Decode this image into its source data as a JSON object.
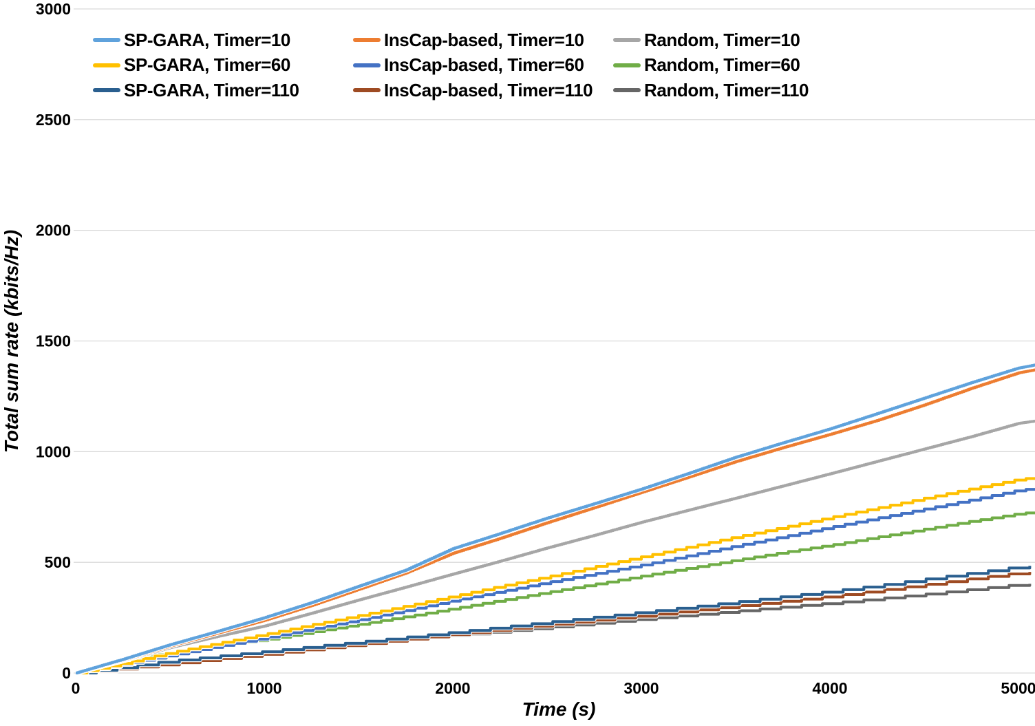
{
  "chart_data": {
    "type": "line",
    "title": "",
    "xlabel": "Time (s)",
    "ylabel": "Total sum rate (kbits/Hz)",
    "xlim": [
      0,
      5100
    ],
    "ylim": [
      0,
      3000
    ],
    "x_ticks": [
      0,
      1000,
      2000,
      3000,
      4000,
      5000
    ],
    "y_ticks": [
      0,
      500,
      1000,
      1500,
      2000,
      2500,
      3000
    ],
    "grid": "horizontal",
    "grid_color": "#d9d9d9",
    "legend_position": "top-left, 3 columns",
    "x": [
      0,
      250,
      500,
      750,
      1000,
      1250,
      1500,
      1750,
      2000,
      2250,
      2500,
      2750,
      3000,
      3250,
      3500,
      3750,
      4000,
      4250,
      4500,
      4750,
      5000,
      5100
    ],
    "series": [
      {
        "id": "sp-gara-timer-10",
        "name": "SP-GARA, Timer=10",
        "color": "#5FA2DC",
        "timer": 10,
        "values": [
          0,
          62,
          128,
          188,
          250,
          318,
          392,
          465,
          562,
          630,
          700,
          765,
          831,
          902,
          975,
          1040,
          1103,
          1172,
          1242,
          1312,
          1378,
          1394
        ]
      },
      {
        "id": "inscap-based-timer-10",
        "name": "InsCap-based, Timer=10",
        "color": "#ED7D31",
        "timer": 10,
        "values": [
          0,
          58,
          122,
          180,
          238,
          305,
          378,
          452,
          541,
          608,
          679,
          747,
          816,
          885,
          955,
          1018,
          1078,
          1141,
          1211,
          1286,
          1356,
          1372
        ]
      },
      {
        "id": "random-timer-10",
        "name": "Random, Timer=10",
        "color": "#A6A6A6",
        "timer": 10,
        "values": [
          0,
          55,
          115,
          165,
          212,
          270,
          330,
          388,
          447,
          505,
          565,
          622,
          681,
          736,
          790,
          845,
          900,
          956,
          1012,
          1068,
          1128,
          1140
        ]
      },
      {
        "id": "sp-gara-timer-60",
        "name": "SP-GARA, Timer=60",
        "color": "#FFC000",
        "timer": 60,
        "values": [
          0,
          45,
          92,
          134,
          175,
          218,
          260,
          303,
          347,
          392,
          435,
          480,
          525,
          570,
          615,
          658,
          703,
          746,
          790,
          833,
          875,
          884
        ]
      },
      {
        "id": "inscap-based-timer-60",
        "name": "InsCap-based, Timer=60",
        "color": "#4472C4",
        "timer": 60,
        "values": [
          0,
          40,
          80,
          120,
          159,
          200,
          241,
          284,
          328,
          369,
          410,
          449,
          488,
          531,
          575,
          616,
          659,
          700,
          741,
          783,
          826,
          835
        ]
      },
      {
        "id": "random-timer-60",
        "name": "Random, Timer=60",
        "color": "#70AD47",
        "timer": 60,
        "values": [
          0,
          55,
          95,
          123,
          150,
          185,
          220,
          255,
          291,
          328,
          365,
          401,
          438,
          474,
          510,
          545,
          578,
          614,
          650,
          686,
          720,
          728
        ]
      },
      {
        "id": "sp-gara-timer-110",
        "name": "SP-GARA, Timer=110",
        "color": "#2A5F8F",
        "timer": 110,
        "values": [
          0,
          28,
          55,
          76,
          97,
          119,
          140,
          162,
          184,
          207,
          230,
          252,
          275,
          298,
          321,
          345,
          369,
          396,
          424,
          452,
          480,
          487
        ]
      },
      {
        "id": "inscap-based-timer-110",
        "name": "InsCap-based, Timer=110",
        "color": "#9E4B23",
        "timer": 110,
        "values": [
          0,
          20,
          42,
          64,
          85,
          108,
          130,
          152,
          175,
          197,
          218,
          239,
          259,
          281,
          303,
          325,
          347,
          373,
          400,
          427,
          453,
          459
        ]
      },
      {
        "id": "random-timer-110",
        "name": "Random, Timer=110",
        "color": "#666666",
        "timer": 110,
        "values": [
          0,
          25,
          50,
          72,
          92,
          113,
          133,
          152,
          170,
          188,
          206,
          225,
          244,
          262,
          280,
          298,
          316,
          336,
          356,
          378,
          400,
          405
        ]
      }
    ]
  }
}
